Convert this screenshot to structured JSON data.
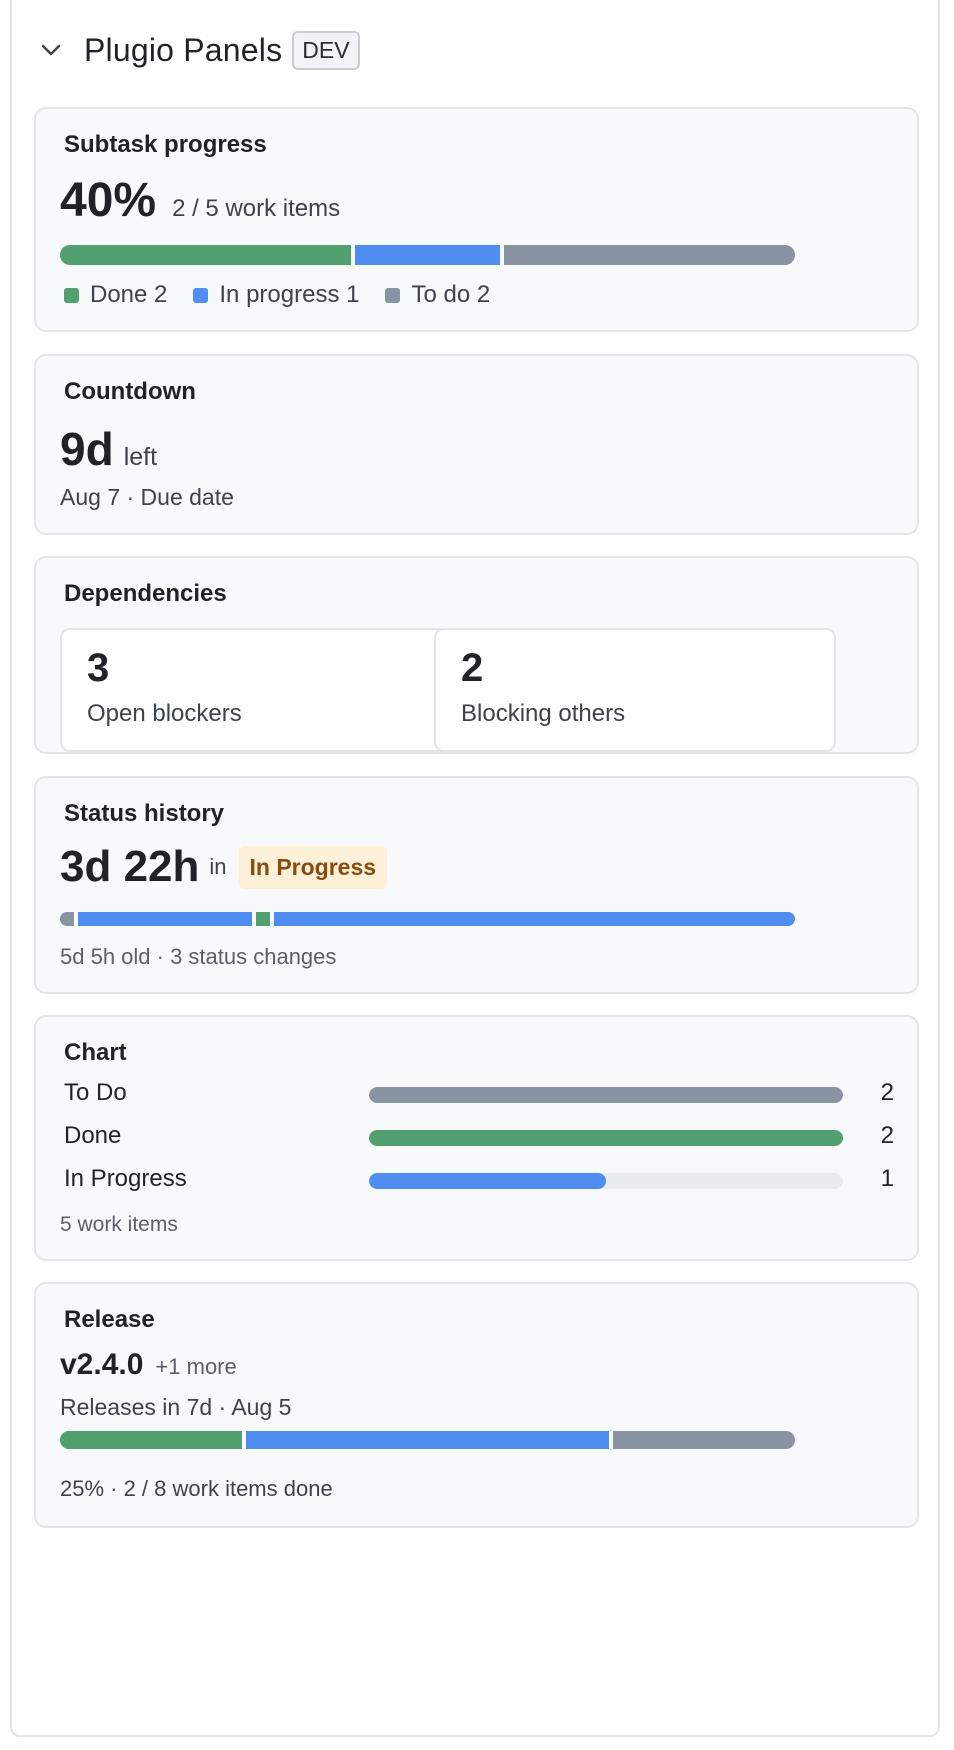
{
  "colors": {
    "done": "#52a070",
    "in_progress": "#4f8ef0",
    "todo": "#8a93a1",
    "track": "#e9ebee"
  },
  "header": {
    "collapse_icon": "chevron-down-icon",
    "title": "Plugio Panels",
    "badge": "DEV"
  },
  "subtask_progress": {
    "title": "Subtask progress",
    "percent": "40%",
    "summary": "2 / 5 work items",
    "segments": [
      {
        "status": "done",
        "value": 2
      },
      {
        "status": "in_progress",
        "value": 1
      },
      {
        "status": "todo",
        "value": 2
      }
    ],
    "legend": [
      {
        "label": "Done 2",
        "color": "#52a070"
      },
      {
        "label": "In progress 1",
        "color": "#4f8ef0"
      },
      {
        "label": "To do 2",
        "color": "#8a93a1"
      }
    ]
  },
  "countdown": {
    "title": "Countdown",
    "value": "9d",
    "suffix": "left",
    "subtitle": "Aug 7 · Due date"
  },
  "dependencies": {
    "title": "Dependencies",
    "items": [
      {
        "value": "3",
        "label": "Open blockers"
      },
      {
        "value": "2",
        "label": "Blocking others"
      }
    ]
  },
  "status_history": {
    "title": "Status history",
    "duration": "3d 22h",
    "connector": "in",
    "current_status": "In Progress",
    "timeline": [
      {
        "status": "todo",
        "fraction": 0.02
      },
      {
        "status": "in_progress",
        "fraction": 0.24
      },
      {
        "status": "done",
        "fraction": 0.02
      },
      {
        "status": "in_progress",
        "fraction": 0.72
      }
    ],
    "subtitle": "5d 5h old · 3 status changes"
  },
  "chart": {
    "title": "Chart",
    "footer": "5 work items"
  },
  "chart_data": {
    "type": "bar",
    "categories": [
      "To Do",
      "Done",
      "In Progress"
    ],
    "values": [
      2,
      2,
      1
    ],
    "colors": [
      "#8a93a1",
      "#52a070",
      "#4f8ef0"
    ],
    "max": 2,
    "title": "Chart"
  },
  "release": {
    "title": "Release",
    "version": "v2.4.0",
    "more": "+1 more",
    "subtitle": "Releases in 7d · Aug 5",
    "segments": [
      {
        "status": "done",
        "value": 2
      },
      {
        "status": "in_progress",
        "value": 4
      },
      {
        "status": "todo",
        "value": 2
      }
    ],
    "footer": "25% · 2 / 8 work items done"
  }
}
